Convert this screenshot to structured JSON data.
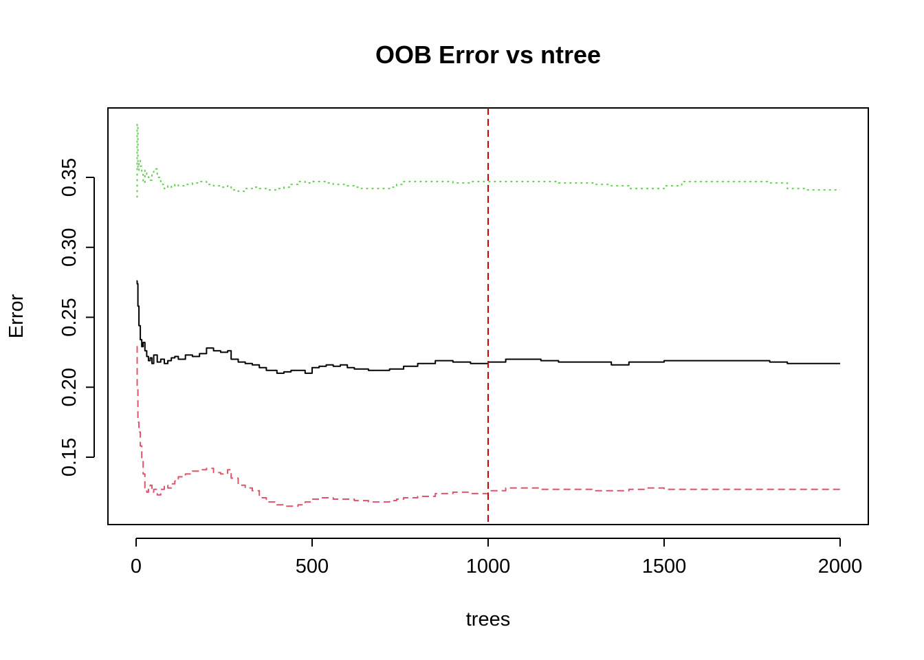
{
  "chart_data": {
    "type": "line",
    "title": "OOB Error vs ntree",
    "xlabel": "trees",
    "ylabel": "Error",
    "xlim": [
      0,
      2000
    ],
    "ylim": [
      0.105,
      0.39
    ],
    "x_ticks": [
      0,
      500,
      1000,
      1500,
      2000
    ],
    "x_tick_labels": [
      "0",
      "500",
      "1000",
      "1500",
      "2000"
    ],
    "y_ticks": [
      0.15,
      0.2,
      0.25,
      0.3,
      0.35
    ],
    "y_tick_labels": [
      "0.15",
      "0.20",
      "0.25",
      "0.30",
      "0.35"
    ],
    "grid": false,
    "legend": "none",
    "reference_line": {
      "x": 1000,
      "color": "#CD0000",
      "style": "dashed"
    },
    "series": [
      {
        "color": "#000000",
        "style": "solid",
        "x": [
          1,
          3,
          5,
          8,
          12,
          16,
          20,
          25,
          30,
          35,
          40,
          45,
          50,
          60,
          70,
          80,
          90,
          100,
          110,
          120,
          140,
          160,
          180,
          200,
          220,
          240,
          260,
          270,
          290,
          310,
          330,
          350,
          370,
          400,
          420,
          440,
          460,
          480,
          500,
          520,
          540,
          560,
          580,
          600,
          620,
          640,
          660,
          680,
          700,
          720,
          740,
          760,
          800,
          850,
          900,
          950,
          1000,
          1050,
          1100,
          1150,
          1200,
          1250,
          1300,
          1350,
          1400,
          1450,
          1500,
          1550,
          1600,
          1650,
          1700,
          1750,
          1800,
          1850,
          1900,
          1950,
          2000
        ],
        "y": [
          0.276,
          0.274,
          0.258,
          0.244,
          0.234,
          0.229,
          0.232,
          0.226,
          0.222,
          0.219,
          0.221,
          0.217,
          0.223,
          0.218,
          0.22,
          0.217,
          0.219,
          0.221,
          0.222,
          0.22,
          0.223,
          0.222,
          0.224,
          0.228,
          0.226,
          0.225,
          0.226,
          0.22,
          0.218,
          0.217,
          0.216,
          0.214,
          0.212,
          0.21,
          0.211,
          0.212,
          0.212,
          0.21,
          0.214,
          0.215,
          0.216,
          0.215,
          0.216,
          0.214,
          0.213,
          0.213,
          0.212,
          0.212,
          0.212,
          0.213,
          0.213,
          0.215,
          0.217,
          0.219,
          0.218,
          0.217,
          0.218,
          0.22,
          0.22,
          0.219,
          0.218,
          0.218,
          0.218,
          0.216,
          0.218,
          0.218,
          0.219,
          0.219,
          0.219,
          0.219,
          0.219,
          0.219,
          0.218,
          0.217,
          0.217,
          0.217,
          0.217
        ]
      },
      {
        "color": "#DF536B",
        "style": "dashed",
        "x": [
          1,
          3,
          5,
          8,
          12,
          16,
          20,
          25,
          30,
          35,
          40,
          45,
          50,
          60,
          70,
          80,
          90,
          100,
          110,
          120,
          140,
          160,
          180,
          200,
          220,
          240,
          260,
          270,
          290,
          310,
          330,
          350,
          370,
          400,
          420,
          440,
          460,
          480,
          500,
          520,
          540,
          560,
          580,
          600,
          620,
          640,
          660,
          680,
          700,
          720,
          740,
          760,
          800,
          850,
          900,
          950,
          1000,
          1050,
          1100,
          1150,
          1200,
          1250,
          1300,
          1350,
          1400,
          1450,
          1500,
          1550,
          1600,
          1650,
          1700,
          1750,
          1800,
          1850,
          1900,
          1950,
          2000
        ],
        "y": [
          0.229,
          0.2,
          0.175,
          0.168,
          0.158,
          0.148,
          0.138,
          0.128,
          0.125,
          0.128,
          0.13,
          0.125,
          0.127,
          0.123,
          0.127,
          0.13,
          0.128,
          0.131,
          0.133,
          0.136,
          0.138,
          0.14,
          0.141,
          0.142,
          0.139,
          0.138,
          0.141,
          0.135,
          0.13,
          0.128,
          0.126,
          0.121,
          0.118,
          0.116,
          0.115,
          0.115,
          0.116,
          0.118,
          0.12,
          0.121,
          0.121,
          0.12,
          0.12,
          0.12,
          0.119,
          0.119,
          0.118,
          0.118,
          0.118,
          0.119,
          0.12,
          0.121,
          0.122,
          0.124,
          0.125,
          0.124,
          0.126,
          0.128,
          0.128,
          0.127,
          0.127,
          0.127,
          0.126,
          0.126,
          0.127,
          0.128,
          0.127,
          0.127,
          0.127,
          0.127,
          0.127,
          0.127,
          0.127,
          0.127,
          0.127,
          0.127,
          0.127
        ]
      },
      {
        "color": "#61D04F",
        "style": "dotted",
        "x": [
          1,
          3,
          5,
          8,
          12,
          16,
          20,
          25,
          30,
          35,
          40,
          45,
          50,
          60,
          70,
          80,
          90,
          100,
          110,
          120,
          140,
          160,
          180,
          200,
          220,
          240,
          260,
          270,
          290,
          310,
          330,
          350,
          370,
          400,
          420,
          440,
          460,
          480,
          500,
          520,
          540,
          560,
          580,
          600,
          620,
          640,
          660,
          680,
          700,
          720,
          740,
          760,
          800,
          850,
          900,
          950,
          1000,
          1050,
          1100,
          1150,
          1200,
          1250,
          1300,
          1350,
          1400,
          1450,
          1500,
          1550,
          1600,
          1650,
          1700,
          1750,
          1800,
          1850,
          1900,
          1950,
          2000
        ],
        "y": [
          0.336,
          0.388,
          0.355,
          0.362,
          0.358,
          0.352,
          0.346,
          0.355,
          0.352,
          0.35,
          0.348,
          0.353,
          0.356,
          0.35,
          0.345,
          0.342,
          0.344,
          0.343,
          0.345,
          0.344,
          0.345,
          0.346,
          0.347,
          0.345,
          0.344,
          0.343,
          0.344,
          0.341,
          0.34,
          0.342,
          0.343,
          0.342,
          0.341,
          0.342,
          0.343,
          0.345,
          0.347,
          0.346,
          0.347,
          0.347,
          0.346,
          0.345,
          0.345,
          0.344,
          0.343,
          0.342,
          0.342,
          0.342,
          0.342,
          0.343,
          0.345,
          0.347,
          0.347,
          0.347,
          0.346,
          0.347,
          0.347,
          0.347,
          0.347,
          0.347,
          0.346,
          0.346,
          0.345,
          0.344,
          0.342,
          0.342,
          0.344,
          0.347,
          0.347,
          0.347,
          0.347,
          0.347,
          0.346,
          0.342,
          0.341,
          0.341,
          0.341
        ]
      }
    ]
  }
}
